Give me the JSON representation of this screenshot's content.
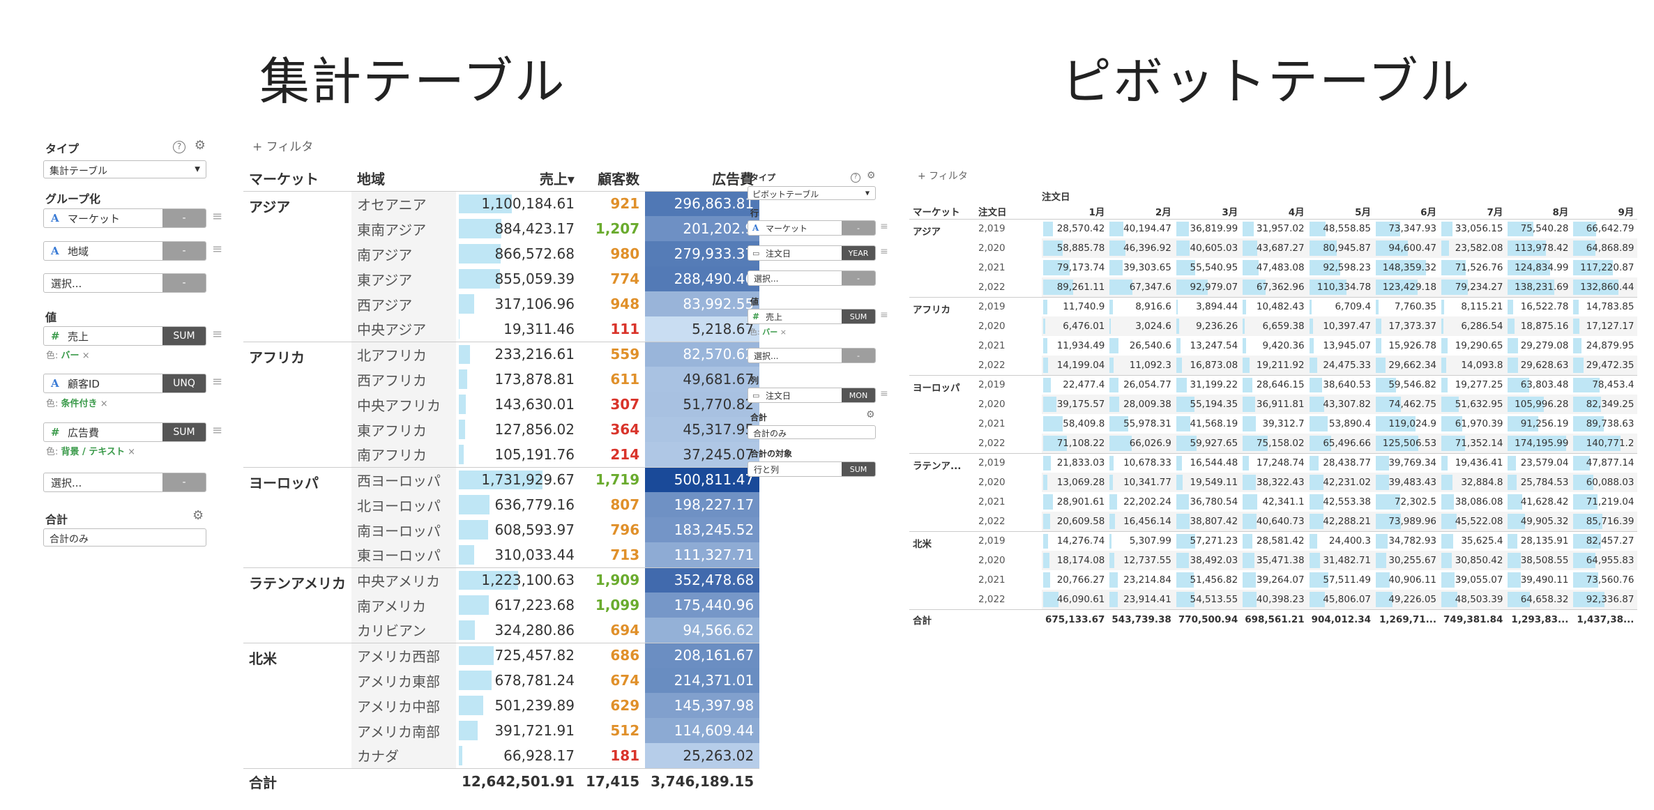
{
  "titles": {
    "left": "集計テーブル",
    "right": "ピボットテーブル"
  },
  "colors": {
    "bar": "#bfe6f5",
    "count_green": "#6aab2e",
    "count_orange": "#e0902a",
    "count_red": "#d9342b",
    "heat_dark": "#1a4a99",
    "heat_light": "#c9ddf2"
  },
  "left_panel": {
    "type_label": "タイプ",
    "type_value": "集計テーブル",
    "help_icon": "help-icon",
    "settings_icon": "gear-icon",
    "group_label": "グループ化",
    "group_fields": [
      {
        "icon": "A",
        "name": "マーケット",
        "agg": "-"
      },
      {
        "icon": "A",
        "name": "地域",
        "agg": "-"
      },
      {
        "icon": "",
        "name": "選択...",
        "agg": "-"
      }
    ],
    "values_label": "値",
    "value_fields": [
      {
        "icon": "#",
        "name": "売上",
        "agg": "SUM",
        "sub_prefix": "色:",
        "sub_value": "バー"
      },
      {
        "icon": "A",
        "name": "顧客ID",
        "agg": "UNQ",
        "sub_prefix": "色:",
        "sub_value": "条件付き"
      },
      {
        "icon": "#",
        "name": "広告費",
        "agg": "SUM",
        "sub_prefix": "色:",
        "sub_value": "背景 / テキスト"
      },
      {
        "icon": "",
        "name": "選択...",
        "agg": "-"
      }
    ],
    "total_label": "合計",
    "total_value": "合計のみ",
    "remove_mark": "×"
  },
  "agg_table": {
    "filter": "+ フィルタ",
    "headers": {
      "market": "マーケット",
      "region": "地域",
      "sales": "売上",
      "customers": "顧客数",
      "ad": "広告費"
    },
    "sort_mark": "▾",
    "groups": [
      {
        "market": "アジア",
        "rows": [
          {
            "region": "オセアニア",
            "sales": "1,100,184.61",
            "customers": "921",
            "ad": "296,863.81"
          },
          {
            "region": "東南アジア",
            "sales": "884,423.17",
            "customers": "1,207",
            "ad": "201,202.9"
          },
          {
            "region": "南アジア",
            "sales": "866,572.68",
            "customers": "980",
            "ad": "279,933.37"
          },
          {
            "region": "東アジア",
            "sales": "855,059.39",
            "customers": "774",
            "ad": "288,490.46"
          },
          {
            "region": "西アジア",
            "sales": "317,106.96",
            "customers": "948",
            "ad": "83,992.55"
          },
          {
            "region": "中央アジア",
            "sales": "19,311.46",
            "customers": "111",
            "ad": "5,218.67"
          }
        ]
      },
      {
        "market": "アフリカ",
        "rows": [
          {
            "region": "北アフリカ",
            "sales": "233,216.61",
            "customers": "559",
            "ad": "82,570.62"
          },
          {
            "region": "西アフリカ",
            "sales": "173,878.81",
            "customers": "611",
            "ad": "49,681.67"
          },
          {
            "region": "中央アフリカ",
            "sales": "143,630.01",
            "customers": "307",
            "ad": "51,770.82"
          },
          {
            "region": "東アフリカ",
            "sales": "127,856.02",
            "customers": "364",
            "ad": "45,317.95"
          },
          {
            "region": "南アフリカ",
            "sales": "105,191.76",
            "customers": "214",
            "ad": "37,245.07"
          }
        ]
      },
      {
        "market": "ヨーロッパ",
        "rows": [
          {
            "region": "西ヨーロッパ",
            "sales": "1,731,929.67",
            "customers": "1,719",
            "ad": "500,811.47"
          },
          {
            "region": "北ヨーロッパ",
            "sales": "636,779.16",
            "customers": "807",
            "ad": "198,227.17"
          },
          {
            "region": "南ヨーロッパ",
            "sales": "608,593.97",
            "customers": "796",
            "ad": "183,245.52"
          },
          {
            "region": "東ヨーロッパ",
            "sales": "310,033.44",
            "customers": "713",
            "ad": "111,327.71"
          }
        ]
      },
      {
        "market": "ラテンアメリカ",
        "rows": [
          {
            "region": "中央アメリカ",
            "sales": "1,223,100.63",
            "customers": "1,909",
            "ad": "352,478.68"
          },
          {
            "region": "南アメリカ",
            "sales": "617,223.68",
            "customers": "1,099",
            "ad": "175,440.96"
          },
          {
            "region": "カリビアン",
            "sales": "324,280.86",
            "customers": "694",
            "ad": "94,566.62"
          }
        ]
      },
      {
        "market": "北米",
        "rows": [
          {
            "region": "アメリカ西部",
            "sales": "725,457.82",
            "customers": "686",
            "ad": "208,161.67"
          },
          {
            "region": "アメリカ東部",
            "sales": "678,781.24",
            "customers": "674",
            "ad": "214,371.01"
          },
          {
            "region": "アメリカ中部",
            "sales": "501,239.89",
            "customers": "629",
            "ad": "145,397.98"
          },
          {
            "region": "アメリカ南部",
            "sales": "391,721.91",
            "customers": "512",
            "ad": "114,609.44"
          },
          {
            "region": "カナダ",
            "sales": "66,928.17",
            "customers": "181",
            "ad": "25,263.02"
          }
        ]
      }
    ],
    "total": {
      "label": "合計",
      "sales": "12,642,501.91",
      "customers": "17,415",
      "ad": "3,746,189.15"
    }
  },
  "right_panel": {
    "type_label": "タイプ",
    "type_value": "ピボットテーブル",
    "row_label": "行",
    "row_fields": [
      {
        "icon": "A",
        "name": "マーケット",
        "agg": "-"
      },
      {
        "icon": "cal",
        "name": "注文日",
        "agg": "YEAR"
      },
      {
        "icon": "",
        "name": "選択...",
        "agg": "-"
      }
    ],
    "values_label": "値",
    "value_fields": [
      {
        "icon": "#",
        "name": "売上",
        "agg": "SUM",
        "sub_prefix": "色:",
        "sub_value": "バー"
      },
      {
        "icon": "",
        "name": "選択...",
        "agg": "-"
      }
    ],
    "col_label": "列",
    "col_fields": [
      {
        "icon": "cal",
        "name": "注文日",
        "agg": "MON"
      }
    ],
    "total_label": "合計",
    "total_value": "合計のみ",
    "target_label": "合計の対象",
    "target_value": "行と列",
    "target_agg": "SUM",
    "remove_mark": "×"
  },
  "pivot_table": {
    "filter": "+ フィルタ",
    "col_group": "注文日",
    "headers": {
      "market": "マーケット",
      "date": "注文日"
    },
    "months": [
      "1月",
      "2月",
      "3月",
      "4月",
      "5月",
      "6月",
      "7月",
      "8月",
      "9月"
    ],
    "groups": [
      {
        "market": "アジア",
        "rows": [
          {
            "year": "2,019",
            "vals": [
              "28,570.42",
              "40,194.47",
              "36,819.99",
              "31,957.02",
              "48,558.85",
              "73,347.93",
              "33,056.15",
              "75,540.28",
              "66,642.79"
            ]
          },
          {
            "year": "2,020",
            "vals": [
              "58,885.78",
              "46,396.92",
              "40,605.03",
              "43,687.27",
              "80,945.87",
              "94,600.47",
              "23,582.08",
              "113,978.42",
              "64,868.89"
            ]
          },
          {
            "year": "2,021",
            "vals": [
              "79,173.74",
              "39,303.65",
              "55,540.95",
              "47,483.08",
              "92,598.23",
              "148,359.32",
              "71,526.76",
              "124,834.99",
              "117,220.87"
            ]
          },
          {
            "year": "2,022",
            "vals": [
              "89,261.11",
              "67,347.6",
              "92,979.07",
              "67,362.96",
              "110,334.78",
              "123,429.18",
              "79,234.27",
              "138,231.69",
              "132,860.44"
            ]
          }
        ]
      },
      {
        "market": "アフリカ",
        "rows": [
          {
            "year": "2,019",
            "vals": [
              "11,740.9",
              "8,916.6",
              "3,894.44",
              "10,482.43",
              "6,709.4",
              "7,760.35",
              "8,115.21",
              "16,522.78",
              "14,783.85"
            ]
          },
          {
            "year": "2,020",
            "vals": [
              "6,476.01",
              "3,024.6",
              "9,236.26",
              "6,659.38",
              "10,397.47",
              "17,373.37",
              "6,286.54",
              "18,875.16",
              "17,127.17"
            ]
          },
          {
            "year": "2,021",
            "vals": [
              "11,934.49",
              "26,540.6",
              "13,247.54",
              "9,420.36",
              "13,945.07",
              "15,926.78",
              "19,290.65",
              "29,279.08",
              "24,879.95"
            ]
          },
          {
            "year": "2,022",
            "vals": [
              "14,199.04",
              "11,092.3",
              "16,873.08",
              "19,211.92",
              "24,475.33",
              "29,662.34",
              "14,093.8",
              "29,628.63",
              "29,472.35"
            ]
          }
        ]
      },
      {
        "market": "ヨーロッパ",
        "rows": [
          {
            "year": "2,019",
            "vals": [
              "22,477.4",
              "26,054.77",
              "31,199.22",
              "28,646.15",
              "38,640.53",
              "59,546.82",
              "19,277.25",
              "63,803.48",
              "78,453.4"
            ]
          },
          {
            "year": "2,020",
            "vals": [
              "39,175.57",
              "28,009.38",
              "55,194.35",
              "36,911.81",
              "43,307.82",
              "74,462.75",
              "51,632.95",
              "105,996.28",
              "82,349.25"
            ]
          },
          {
            "year": "2,021",
            "vals": [
              "58,409.8",
              "55,978.31",
              "41,568.19",
              "39,312.7",
              "53,890.4",
              "119,024.9",
              "61,970.39",
              "91,256.19",
              "89,738.63"
            ]
          },
          {
            "year": "2,022",
            "vals": [
              "71,108.22",
              "66,026.9",
              "59,927.65",
              "75,158.02",
              "65,496.66",
              "125,506.53",
              "71,352.14",
              "174,195.99",
              "140,771.2"
            ]
          }
        ]
      },
      {
        "market": "ラテンア...",
        "rows": [
          {
            "year": "2,019",
            "vals": [
              "21,833.03",
              "10,678.33",
              "16,544.48",
              "17,248.74",
              "28,438.77",
              "39,769.34",
              "19,436.41",
              "23,579.04",
              "47,877.14"
            ]
          },
          {
            "year": "2,020",
            "vals": [
              "13,069.28",
              "10,341.77",
              "19,549.11",
              "38,322.43",
              "42,231.02",
              "39,483.43",
              "32,884.8",
              "25,784.53",
              "60,088.03"
            ]
          },
          {
            "year": "2,021",
            "vals": [
              "28,901.61",
              "22,202.24",
              "36,780.54",
              "42,341.1",
              "42,553.38",
              "72,302.5",
              "38,086.08",
              "41,628.42",
              "71,219.04"
            ]
          },
          {
            "year": "2,022",
            "vals": [
              "20,609.58",
              "16,456.14",
              "38,807.42",
              "40,640.73",
              "42,288.21",
              "73,989.96",
              "45,522.08",
              "49,905.32",
              "85,716.39"
            ]
          }
        ]
      },
      {
        "market": "北米",
        "rows": [
          {
            "year": "2,019",
            "vals": [
              "14,276.74",
              "5,307.99",
              "57,271.23",
              "28,581.42",
              "24,400.3",
              "34,782.93",
              "35,625.4",
              "28,135.91",
              "82,457.27"
            ]
          },
          {
            "year": "2,020",
            "vals": [
              "18,174.08",
              "12,737.55",
              "38,492.03",
              "35,471.38",
              "31,482.71",
              "30,255.67",
              "30,850.42",
              "38,508.55",
              "64,955.83"
            ]
          },
          {
            "year": "2,021",
            "vals": [
              "20,766.27",
              "23,214.84",
              "51,456.82",
              "39,264.07",
              "57,511.49",
              "40,906.11",
              "39,055.07",
              "39,490.11",
              "73,560.76"
            ]
          },
          {
            "year": "2,022",
            "vals": [
              "46,090.61",
              "23,914.41",
              "54,513.55",
              "40,398.23",
              "45,806.07",
              "49,226.05",
              "48,503.39",
              "64,658.32",
              "92,336.87"
            ]
          }
        ]
      }
    ],
    "total": {
      "label": "合計",
      "vals": [
        "675,133.67",
        "543,739.38",
        "770,500.94",
        "698,561.21",
        "904,012.34",
        "1,269,71...",
        "749,381.84",
        "1,293,83...",
        "1,437,38..."
      ]
    }
  }
}
